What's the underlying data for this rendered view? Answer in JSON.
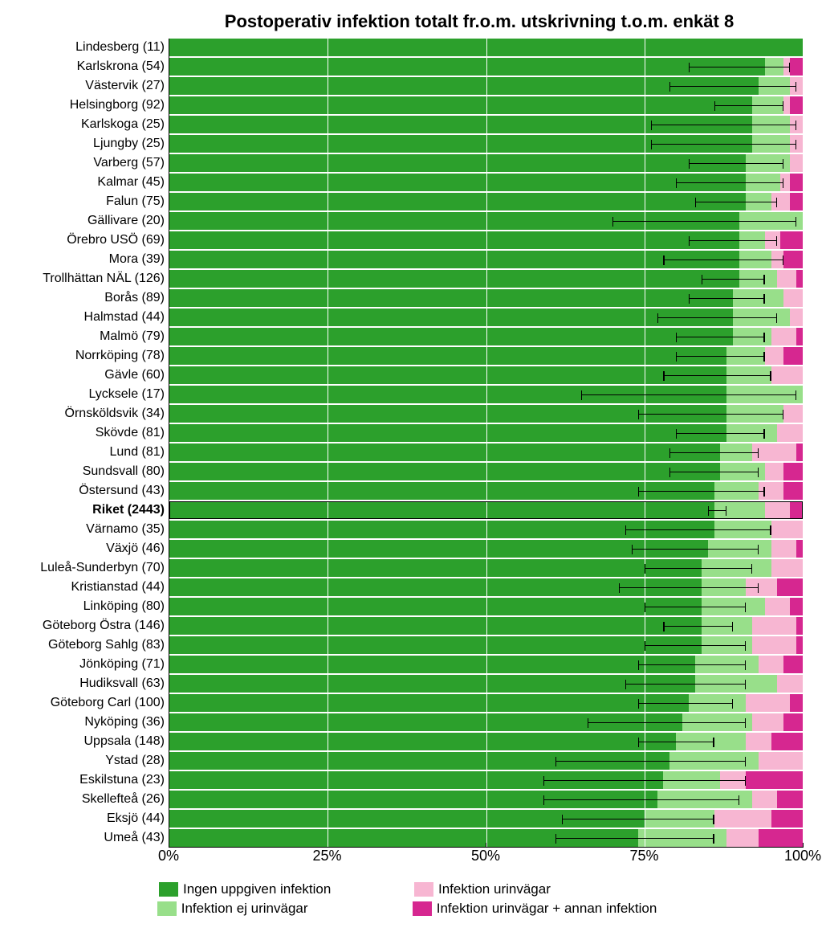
{
  "chart": {
    "type": "stacked-bar-horizontal",
    "title": "Postoperativ infektion totalt fr.o.m. utskrivning t.o.m. enkät 8",
    "title_fontsize": 22,
    "label_fontsize": 16,
    "xlim": [
      0,
      100
    ],
    "xticks": [
      0,
      25,
      50,
      75,
      100
    ],
    "xtick_labels": [
      "0%",
      "25%",
      "50%",
      "75%",
      "100%"
    ],
    "colors": {
      "seg0": "#2ca02c",
      "seg1": "#98df8a",
      "seg2": "#f7b6d2",
      "seg3": "#d62790"
    },
    "background_color": "#ffffff",
    "gridline_color": "#ffffff",
    "legend": [
      {
        "label": "Ingen uppgiven infektion",
        "color": "seg0"
      },
      {
        "label": "Infektion urinvägar",
        "color": "seg2"
      },
      {
        "label": "Infektion ej urinvägar",
        "color": "seg1"
      },
      {
        "label": "Infektion urinvägar + annan infektion",
        "color": "seg3"
      }
    ],
    "rows": [
      {
        "label": "Lindesberg (11)",
        "seg": [
          100,
          0,
          0,
          0
        ],
        "err": null
      },
      {
        "label": "Karlskrona (54)",
        "seg": [
          94,
          3,
          1,
          2
        ],
        "err": [
          82,
          98
        ]
      },
      {
        "label": "Västervik (27)",
        "seg": [
          93,
          5,
          2,
          0
        ],
        "err": [
          79,
          99
        ]
      },
      {
        "label": "Helsingborg (92)",
        "seg": [
          92,
          5,
          1,
          2
        ],
        "err": [
          86,
          97
        ]
      },
      {
        "label": "Karlskoga (25)",
        "seg": [
          92,
          6,
          2,
          0
        ],
        "err": [
          76,
          99
        ]
      },
      {
        "label": "Ljungby (25)",
        "seg": [
          92,
          6,
          2,
          0
        ],
        "err": [
          76,
          99
        ]
      },
      {
        "label": "Varberg (57)",
        "seg": [
          91,
          7,
          2,
          0
        ],
        "err": [
          82,
          97
        ]
      },
      {
        "label": "Kalmar (45)",
        "seg": [
          91,
          5.5,
          1.5,
          2
        ],
        "err": [
          80,
          97
        ]
      },
      {
        "label": "Falun (75)",
        "seg": [
          91,
          4,
          3,
          2
        ],
        "err": [
          83,
          96
        ]
      },
      {
        "label": "Gällivare (20)",
        "seg": [
          90,
          10,
          0,
          0
        ],
        "err": [
          70,
          99
        ]
      },
      {
        "label": "Örebro USÖ (69)",
        "seg": [
          90,
          4,
          2.5,
          3.5
        ],
        "err": [
          82,
          96
        ]
      },
      {
        "label": "Mora (39)",
        "seg": [
          90,
          5,
          2,
          3
        ],
        "err": [
          78,
          97
        ]
      },
      {
        "label": "Trollhättan NÄL (126)",
        "seg": [
          90,
          6,
          3,
          1
        ],
        "err": [
          84,
          94
        ]
      },
      {
        "label": "Borås (89)",
        "seg": [
          89,
          8,
          3,
          0
        ],
        "err": [
          82,
          94
        ]
      },
      {
        "label": "Halmstad (44)",
        "seg": [
          89,
          9,
          2,
          0
        ],
        "err": [
          77,
          96
        ]
      },
      {
        "label": "Malmö (79)",
        "seg": [
          89,
          6,
          4,
          1
        ],
        "err": [
          80,
          94
        ]
      },
      {
        "label": "Norrköping (78)",
        "seg": [
          88,
          6,
          3,
          3
        ],
        "err": [
          80,
          94
        ]
      },
      {
        "label": "Gävle (60)",
        "seg": [
          88,
          7,
          5,
          0
        ],
        "err": [
          78,
          95
        ]
      },
      {
        "label": "Lycksele (17)",
        "seg": [
          88,
          12,
          0,
          0
        ],
        "err": [
          65,
          99
        ]
      },
      {
        "label": "Örnsköldsvik (34)",
        "seg": [
          88,
          9,
          3,
          0
        ],
        "err": [
          74,
          97
        ]
      },
      {
        "label": "Skövde (81)",
        "seg": [
          88,
          8,
          4,
          0
        ],
        "err": [
          80,
          94
        ]
      },
      {
        "label": "Lund (81)",
        "seg": [
          87,
          5,
          7,
          1
        ],
        "err": [
          79,
          93
        ]
      },
      {
        "label": "Sundsvall (80)",
        "seg": [
          87,
          7,
          3,
          3
        ],
        "err": [
          79,
          93
        ]
      },
      {
        "label": "Östersund (43)",
        "seg": [
          86,
          7,
          4,
          3
        ],
        "err": [
          74,
          94
        ]
      },
      {
        "label": "Riket (2443)",
        "seg": [
          86,
          8,
          4,
          2
        ],
        "err": [
          85,
          88
        ],
        "bold": true
      },
      {
        "label": "Värnamo (35)",
        "seg": [
          86,
          9,
          5,
          0
        ],
        "err": [
          72,
          95
        ]
      },
      {
        "label": "Växjö (46)",
        "seg": [
          85,
          10,
          4,
          1
        ],
        "err": [
          73,
          93
        ]
      },
      {
        "label": "Luleå-Sunderbyn (70)",
        "seg": [
          84,
          11,
          5,
          0
        ],
        "err": [
          75,
          92
        ]
      },
      {
        "label": "Kristianstad (44)",
        "seg": [
          84,
          7,
          5,
          4
        ],
        "err": [
          71,
          93
        ]
      },
      {
        "label": "Linköping (80)",
        "seg": [
          84,
          10,
          4,
          2
        ],
        "err": [
          75,
          91
        ]
      },
      {
        "label": "Göteborg Östra (146)",
        "seg": [
          84,
          8,
          7,
          1
        ],
        "err": [
          78,
          89
        ]
      },
      {
        "label": "Göteborg Sahlg (83)",
        "seg": [
          84,
          8,
          7,
          1
        ],
        "err": [
          75,
          91
        ]
      },
      {
        "label": "Jönköping (71)",
        "seg": [
          83,
          10,
          4,
          3
        ],
        "err": [
          74,
          91
        ]
      },
      {
        "label": "Hudiksvall (63)",
        "seg": [
          83,
          13,
          4,
          0
        ],
        "err": [
          72,
          91
        ]
      },
      {
        "label": "Göteborg Carl (100)",
        "seg": [
          82,
          9,
          7,
          2
        ],
        "err": [
          74,
          89
        ]
      },
      {
        "label": "Nyköping (36)",
        "seg": [
          81,
          11,
          5,
          3
        ],
        "err": [
          66,
          91
        ]
      },
      {
        "label": "Uppsala (148)",
        "seg": [
          80,
          11,
          4,
          5
        ],
        "err": [
          74,
          86
        ]
      },
      {
        "label": "Ystad (28)",
        "seg": [
          79,
          14,
          7,
          0
        ],
        "err": [
          61,
          91
        ]
      },
      {
        "label": "Eskilstuna (23)",
        "seg": [
          78,
          9,
          4,
          9
        ],
        "err": [
          59,
          91
        ]
      },
      {
        "label": "Skellefteå (26)",
        "seg": [
          77,
          15,
          4,
          4
        ],
        "err": [
          59,
          90
        ]
      },
      {
        "label": "Eksjö (44)",
        "seg": [
          75,
          11,
          9,
          5
        ],
        "err": [
          62,
          86
        ]
      },
      {
        "label": "Umeå (43)",
        "seg": [
          74,
          14,
          5,
          7
        ],
        "err": [
          61,
          86
        ]
      }
    ]
  }
}
